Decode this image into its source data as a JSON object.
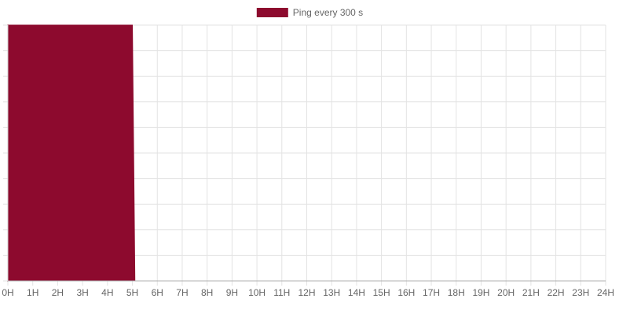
{
  "chart_data": {
    "type": "area",
    "legend": {
      "position": "top-center",
      "entries": [
        {
          "label": "Ping every 300 s",
          "color": "#8d0a2e"
        }
      ]
    },
    "x_labels": [
      "0H",
      "1H",
      "2H",
      "3H",
      "4H",
      "5H",
      "6H",
      "7H",
      "8H",
      "9H",
      "10H",
      "11H",
      "12H",
      "13H",
      "14H",
      "15H",
      "16H",
      "17H",
      "18H",
      "19H",
      "20H",
      "21H",
      "22H",
      "23H",
      "24H"
    ],
    "xlim": [
      0,
      24
    ],
    "ylim": [
      0,
      1
    ],
    "y_tick_labels_shown": false,
    "grid": true,
    "series": [
      {
        "name": "Ping every 300 s",
        "color": "#8d0a2e",
        "x": [
          0,
          5.0,
          5.05,
          5.1
        ],
        "y": [
          1,
          1,
          0.5,
          0
        ]
      }
    ]
  }
}
